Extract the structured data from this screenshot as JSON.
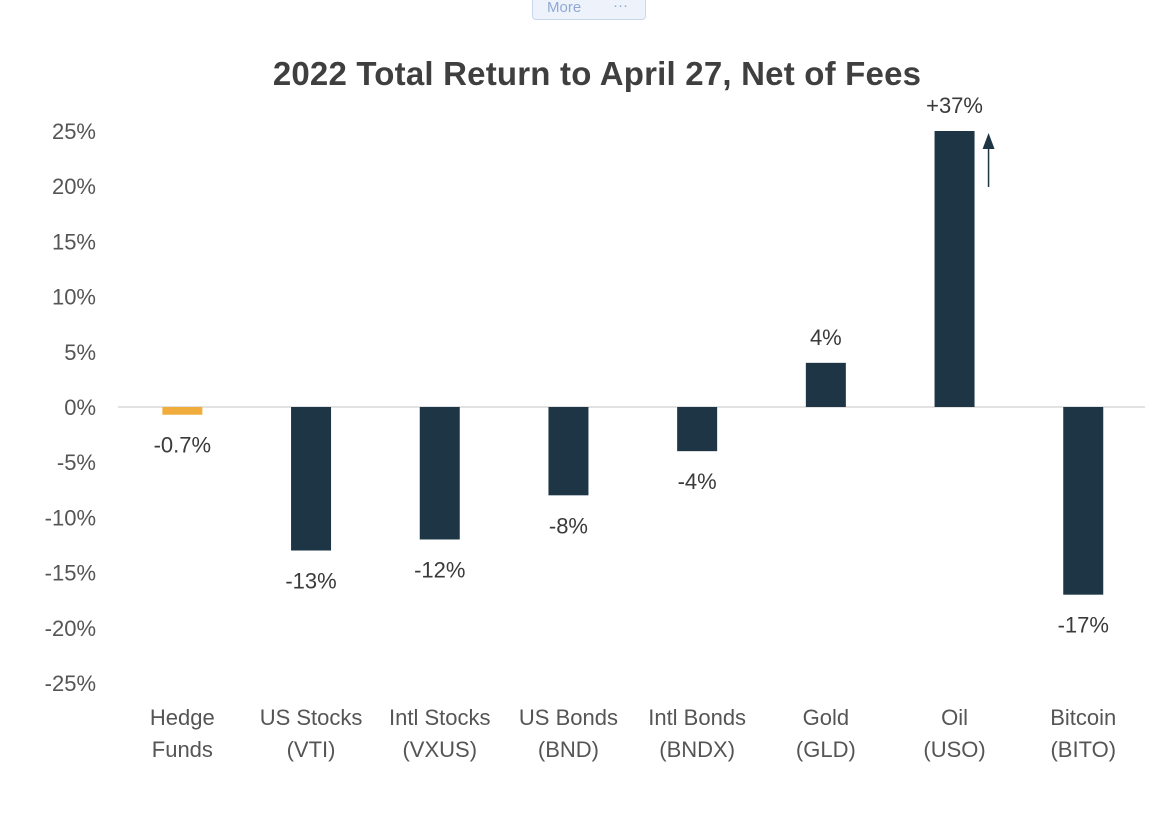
{
  "toolbar": {
    "more_label": "More",
    "more_dots": "···"
  },
  "chart_data": {
    "type": "bar",
    "title": "2022 Total Return to April 27, Net of Fees",
    "categories": [
      [
        "Hedge",
        "Funds"
      ],
      [
        "US Stocks",
        "(VTI)"
      ],
      [
        "Intl Stocks",
        "(VXUS)"
      ],
      [
        "US Bonds",
        "(BND)"
      ],
      [
        "Intl Bonds",
        "(BNDX)"
      ],
      [
        "Gold",
        "(GLD)"
      ],
      [
        "Oil",
        "(USO)"
      ],
      [
        "Bitcoin",
        "(BITO)"
      ]
    ],
    "values": [
      -0.7,
      -13,
      -12,
      -8,
      -4,
      4,
      37,
      -17
    ],
    "data_labels": [
      "-0.7%",
      "-13%",
      "-12%",
      "-8%",
      "-4%",
      "4%",
      "+37%",
      "-17%"
    ],
    "bar_colors": [
      "#f0ad3c",
      "#1e3545",
      "#1e3545",
      "#1e3545",
      "#1e3545",
      "#1e3545",
      "#1e3545",
      "#1e3545"
    ],
    "ylim": [
      -25,
      25
    ],
    "yticks": [
      25,
      20,
      15,
      10,
      5,
      0,
      -5,
      -10,
      -15,
      -20,
      -25
    ],
    "ytick_labels": [
      "25%",
      "20%",
      "15%",
      "10%",
      "5%",
      "0%",
      "-5%",
      "-10%",
      "-15%",
      "-20%",
      "-25%"
    ],
    "clipped_bar_index": 6,
    "annotation_arrow": "up",
    "xlabel": "",
    "ylabel": "",
    "grid": false
  }
}
